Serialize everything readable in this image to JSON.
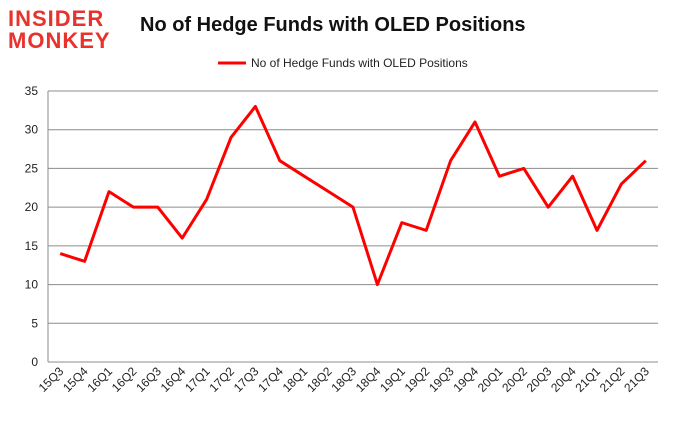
{
  "logo": {
    "line1": "INSIDER",
    "line2": "MONKEY"
  },
  "chart_data": {
    "type": "line",
    "title": "No of Hedge Funds with OLED Positions",
    "legend": "top-center",
    "xlabel": "",
    "ylabel": "",
    "ylim": [
      0,
      35
    ],
    "yticks": [
      0,
      5,
      10,
      15,
      20,
      25,
      30,
      35
    ],
    "grid": true,
    "color": "#ff0000",
    "categories": [
      "15Q3",
      "15Q4",
      "16Q1",
      "16Q2",
      "16Q3",
      "16Q4",
      "17Q1",
      "17Q2",
      "17Q3",
      "17Q4",
      "18Q1",
      "18Q2",
      "18Q3",
      "18Q4",
      "19Q1",
      "19Q2",
      "19Q3",
      "19Q4",
      "20Q1",
      "20Q2",
      "20Q3",
      "20Q4",
      "21Q1",
      "21Q2",
      "21Q3"
    ],
    "series": [
      {
        "name": "No of Hedge Funds with OLED Positions",
        "values": [
          14,
          13,
          22,
          20,
          20,
          16,
          21,
          29,
          33,
          26,
          24,
          22,
          20,
          10,
          18,
          17,
          26,
          31,
          24,
          25,
          20,
          24,
          17,
          23,
          26
        ]
      }
    ]
  }
}
